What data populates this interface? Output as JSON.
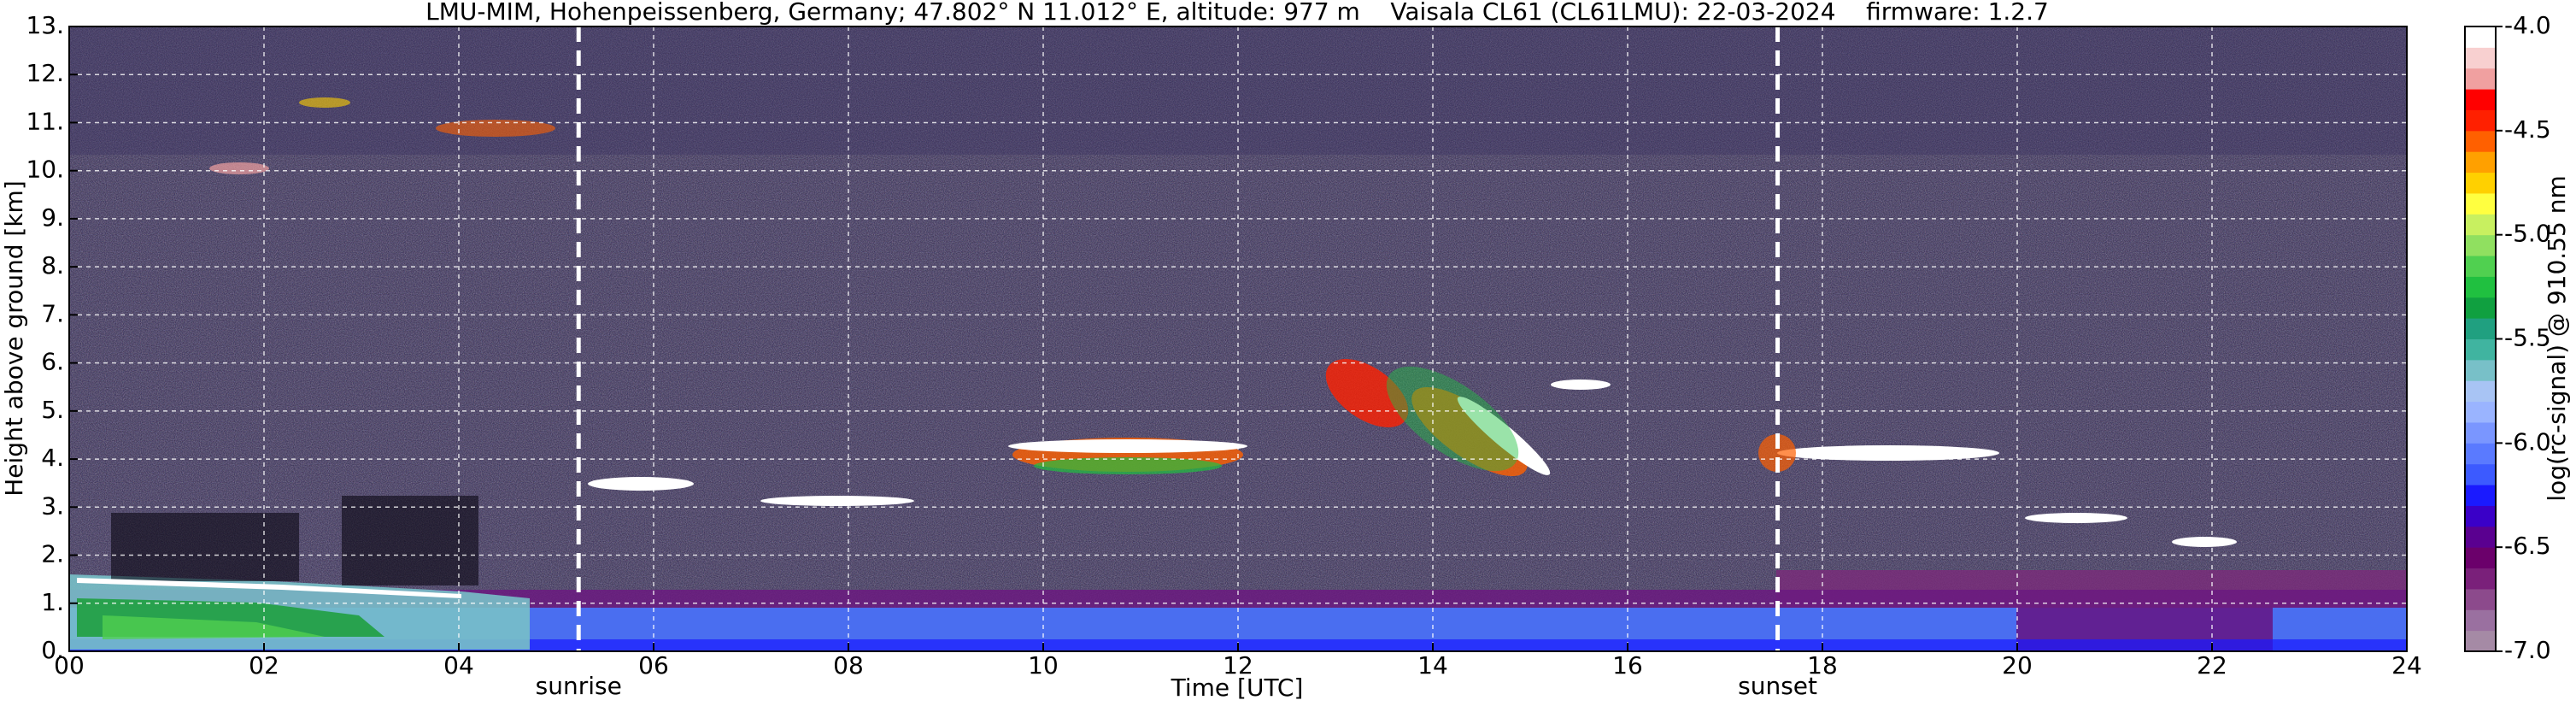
{
  "chart_data": {
    "type": "heatmap",
    "title": "LMU-MIM, Hohenpeissenberg, Germany; 47.802° N 11.012° E, altitude: 977 m    Vaisala CL61 (CL61LMU): 22-03-2024    firmware: 1.2.7",
    "xlabel": "Time [UTC]",
    "ylabel": "Height above ground [km]",
    "colorbar_label": "log(rc-signal) @ 910.55 nm",
    "xlim": [
      0,
      24
    ],
    "xticks": [
      {
        "value": 0,
        "label": "00"
      },
      {
        "value": 2,
        "label": "02"
      },
      {
        "value": 4,
        "label": "04"
      },
      {
        "value": 6,
        "label": "06"
      },
      {
        "value": 8,
        "label": "08"
      },
      10,
      12,
      14,
      16,
      18,
      20,
      22,
      24
    ],
    "ylim": [
      0,
      13
    ],
    "yticks": [
      {
        "value": 0,
        "label": "0."
      },
      {
        "value": 1,
        "label": "1."
      },
      {
        "value": 2,
        "label": "2."
      },
      {
        "value": 3,
        "label": "3."
      },
      {
        "value": 4,
        "label": "4."
      },
      {
        "value": 5,
        "label": "5."
      },
      {
        "value": 6,
        "label": "6."
      },
      {
        "value": 7,
        "label": "7."
      },
      {
        "value": 8,
        "label": "8."
      },
      {
        "value": 9,
        "label": "9."
      },
      {
        "value": 10,
        "label": "10."
      },
      {
        "value": 11,
        "label": "11."
      },
      {
        "value": 12,
        "label": "12."
      },
      {
        "value": 13,
        "label": "13."
      }
    ],
    "grid": true,
    "annotations": [
      {
        "text": "sunrise",
        "x": 5.23
      },
      {
        "text": "sunset",
        "x": 17.54
      }
    ],
    "colorbar": {
      "lim": [
        -7,
        -4
      ],
      "ticks": [
        {
          "value": -7,
          "label": "-7.0"
        },
        -6.5,
        {
          "value": -6,
          "label": "-6.0"
        },
        -5.5,
        {
          "value": -5,
          "label": "-5.0"
        },
        -4.5,
        {
          "value": -4,
          "label": "-4.0"
        }
      ],
      "colors": [
        "#a58aa5",
        "#9a70a0",
        "#8c4a8c",
        "#7a207a",
        "#6b006b",
        "#5a0090",
        "#3a00c8",
        "#1a1aff",
        "#3c5aff",
        "#5a7aff",
        "#7a96ff",
        "#9ab4ff",
        "#a8c4f4",
        "#78c0c8",
        "#40b4a0",
        "#20a080",
        "#10a040",
        "#20c040",
        "#50d050",
        "#90e060",
        "#c8f060",
        "#ffff40",
        "#ffd000",
        "#ffa000",
        "#ff6000",
        "#ff2000",
        "#ff0000",
        "#f0a0a0",
        "#f8d0d0",
        "#ffffff"
      ]
    }
  }
}
